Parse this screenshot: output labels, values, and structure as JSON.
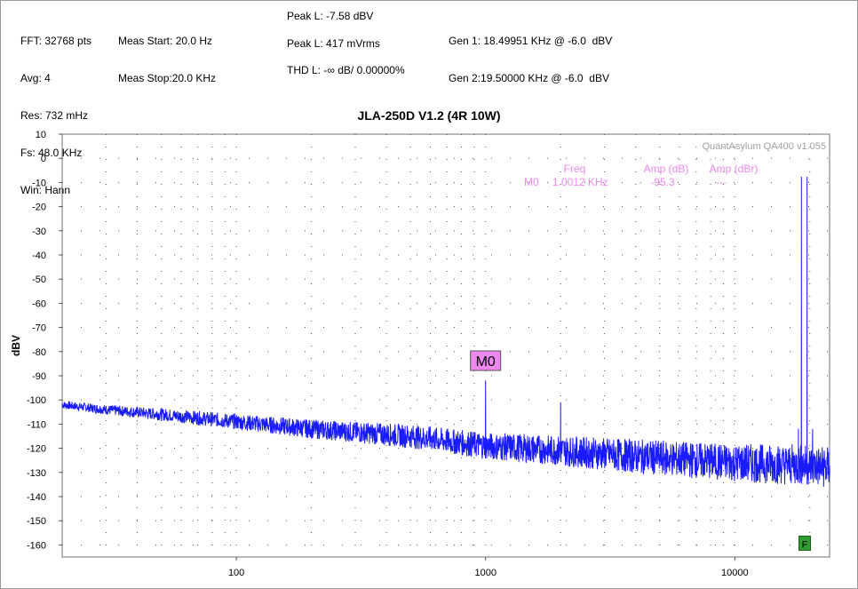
{
  "header": {
    "col1": [
      "FFT: 32768 pts",
      "Avg: 4",
      "Res: 732 mHz",
      "Fs: 48.0 KHz",
      "Win: Hann"
    ],
    "col2": [
      "Meas Start: 20.0 Hz",
      "Meas Stop:20.0 KHz"
    ],
    "peak_dbv": "Peak L: -7.58 dBV",
    "peak_mv": "Peak L: 417 mVrms",
    "thd": "THD L: -∞ dB/ 0.00000%",
    "gen1": "Gen 1: 18.49951 KHz @ -6.0  dBV",
    "gen2": "Gen 2:19.50000 KHz @ -6.0  dBV"
  },
  "chart_data": {
    "type": "line",
    "title": "JLA-250D V1.2 (4R 10W)",
    "watermark": "QuantAsylum QA400 v1.055",
    "xlabel": "",
    "ylabel": "dBV",
    "x_scale": "log",
    "xlim": [
      20,
      24000
    ],
    "ylim": [
      -165,
      10
    ],
    "yticks": [
      10,
      0,
      -10,
      -20,
      -30,
      -40,
      -50,
      -60,
      -70,
      -80,
      -90,
      -100,
      -110,
      -120,
      -130,
      -140,
      -150,
      -160
    ],
    "xticks": [
      100,
      1000,
      10000
    ],
    "xtick_labels": [
      "100",
      "1000",
      "10000"
    ],
    "grid": true,
    "line_color": "#1a1aff",
    "series": [
      {
        "noise_floor": [
          [
            20,
            -102
          ],
          [
            30,
            -104
          ],
          [
            50,
            -106
          ],
          [
            100,
            -109
          ],
          [
            200,
            -112
          ],
          [
            500,
            -115
          ],
          [
            1000,
            -119
          ],
          [
            2000,
            -121
          ],
          [
            5000,
            -124
          ],
          [
            10000,
            -126
          ],
          [
            20000,
            -127
          ],
          [
            24000,
            -128
          ]
        ],
        "spikes": [
          [
            1000,
            -92
          ],
          [
            2000,
            -101
          ],
          [
            17500,
            -127
          ],
          [
            17990,
            -112
          ],
          [
            18000,
            -129
          ],
          [
            18250,
            -127
          ],
          [
            18500,
            -7.6
          ],
          [
            18760,
            -127
          ],
          [
            19000,
            -127
          ],
          [
            19250,
            -127
          ],
          [
            19500,
            -7.6
          ],
          [
            19750,
            -127
          ],
          [
            20000,
            -127
          ],
          [
            20510,
            -112
          ],
          [
            21000,
            -127
          ],
          [
            21500,
            -127
          ],
          [
            22000,
            -127
          ],
          [
            22520,
            -125
          ],
          [
            24000,
            -127
          ]
        ]
      }
    ],
    "marker": {
      "label": "M0",
      "freq": 1000,
      "table_headers": [
        "Freq",
        "Amp (dB)",
        "Amp (dBr)"
      ],
      "row_name": "M0",
      "row_freq": "1.0012 KHz",
      "row_amp_db": "-95.3",
      "row_amp_dbr": "---",
      "color": "#ee88ee"
    },
    "flag": {
      "label": "F",
      "freq": 19000,
      "color": "#2e9e2e"
    }
  }
}
